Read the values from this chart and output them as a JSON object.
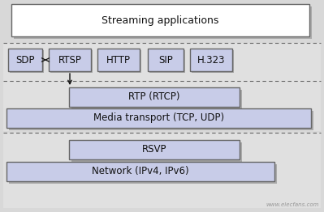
{
  "bg_color": "#d8d8d8",
  "white_box_color": "#ffffff",
  "light_blue_box_color": "#c8cce8",
  "dashed_line_color": "#666666",
  "text_color": "#111111",
  "border_color": "#666666",
  "shadow_color": "#aaaaaa",
  "section_bg_color": "#e0e0e0",
  "streaming_app_text": "Streaming applications",
  "sdp_text": "SDP",
  "rtsp_text": "RTSP",
  "http_text": "HTTP",
  "sip_text": "SIP",
  "h323_text": "H.323",
  "rtp_text": "RTP (RTCP)",
  "media_text": "Media transport (TCP, UDP)",
  "rsvp_text": "RSVP",
  "network_text": "Network (IPv4, IPv6)",
  "watermark_text": "www.elecfans.com",
  "font_size": 8.5
}
